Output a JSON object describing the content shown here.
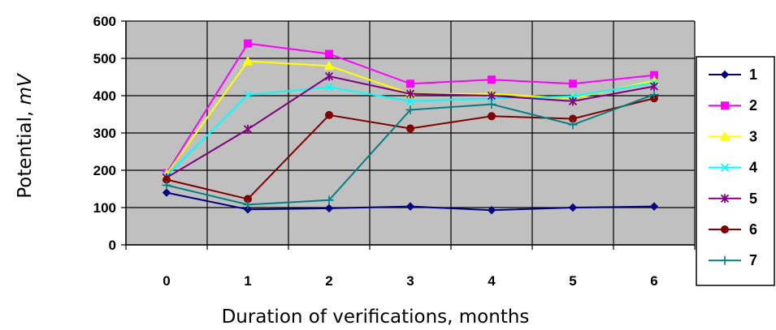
{
  "chart_data": {
    "type": "line",
    "title": "",
    "xlabel": "Duration of verifications, months",
    "ylabel_text": "Potential, ",
    "ylabel_unit": "mV",
    "x": [
      0,
      1,
      2,
      3,
      4,
      5,
      6
    ],
    "x_tick_labels": [
      "0",
      "1",
      "2",
      "3",
      "4",
      "5",
      "6"
    ],
    "ylim": [
      0,
      600
    ],
    "y_ticks": [
      0,
      100,
      200,
      300,
      400,
      500,
      600
    ],
    "y_tick_labels": [
      "0",
      "100",
      "200",
      "300",
      "400",
      "500",
      "600"
    ],
    "grid": true,
    "plot_background": "#c0c0c0",
    "legend_position": "right",
    "series": [
      {
        "name": "1",
        "color": "#000080",
        "marker": "diamond",
        "values": [
          140,
          95,
          98,
          103,
          93,
          100,
          103
        ]
      },
      {
        "name": "2",
        "color": "#ff00ff",
        "marker": "square",
        "values": [
          192,
          540,
          512,
          432,
          443,
          432,
          455
        ]
      },
      {
        "name": "3",
        "color": "#ffff00",
        "marker": "triangle",
        "values": [
          190,
          492,
          480,
          405,
          405,
          393,
          440
        ]
      },
      {
        "name": "4",
        "color": "#00ffff",
        "marker": "x",
        "values": [
          185,
          402,
          423,
          385,
          393,
          398,
          435
        ]
      },
      {
        "name": "5",
        "color": "#800080",
        "marker": "star",
        "values": [
          180,
          310,
          452,
          405,
          400,
          385,
          425
        ]
      },
      {
        "name": "6",
        "color": "#800000",
        "marker": "circle",
        "values": [
          175,
          123,
          348,
          312,
          345,
          338,
          393
        ]
      },
      {
        "name": "7",
        "color": "#008080",
        "marker": "plus",
        "values": [
          160,
          108,
          120,
          362,
          377,
          322,
          403
        ]
      }
    ]
  }
}
